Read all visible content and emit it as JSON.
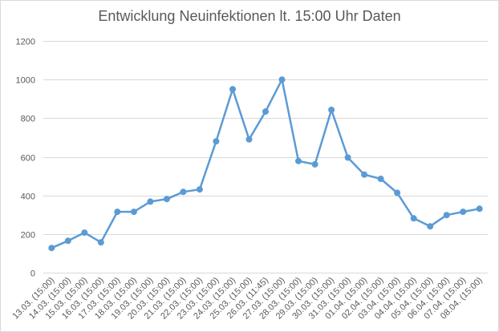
{
  "chart_data": {
    "type": "line",
    "title": "Entwicklung Neuinfektionen lt. 15:00 Uhr Daten",
    "xlabel": "",
    "ylabel": "",
    "categories": [
      "13.03. (15:00)",
      "14.03. (15:00)",
      "15.03. (15:00)",
      "16.03. (15:00)",
      "17.03. (15:00)",
      "18.03. (15:00)",
      "19.03. (15:00)",
      "20.03. (15:00)",
      "21.03. (15:00)",
      "22.03. (15:00)",
      "23.03. (15:00)",
      "24.03. (15:00)",
      "25.03. (15:00)",
      "26.03. (11:45)",
      "27.03. (15:00)",
      "28.03. (15:00)",
      "29.03. (15:00)",
      "30.03. (15:00)",
      "31.03. (15:00)",
      "01.04. (15:00)",
      "02.04. (15:00)",
      "03.04. (15:00)",
      "04.04. (15:00)",
      "05.04. (15:00)",
      "06.04. (15:00)",
      "07.04. (15:00)",
      "08.04. (15:00)"
    ],
    "series": [
      {
        "values": [
          128,
          165,
          207,
          157,
          315,
          315,
          368,
          381,
          418,
          431,
          680,
          950,
          690,
          834,
          1000,
          578,
          561,
          843,
          596,
          508,
          486,
          413,
          281,
          240,
          298,
          315,
          331
        ]
      }
    ],
    "ylim": [
      0,
      1200
    ],
    "yticks": [
      0,
      200,
      400,
      600,
      800,
      1000,
      1200
    ],
    "grid": true,
    "legend": "none",
    "line_color": "#5b9bd5",
    "grid_color": "#d9d9d9",
    "text_color": "#595959"
  }
}
